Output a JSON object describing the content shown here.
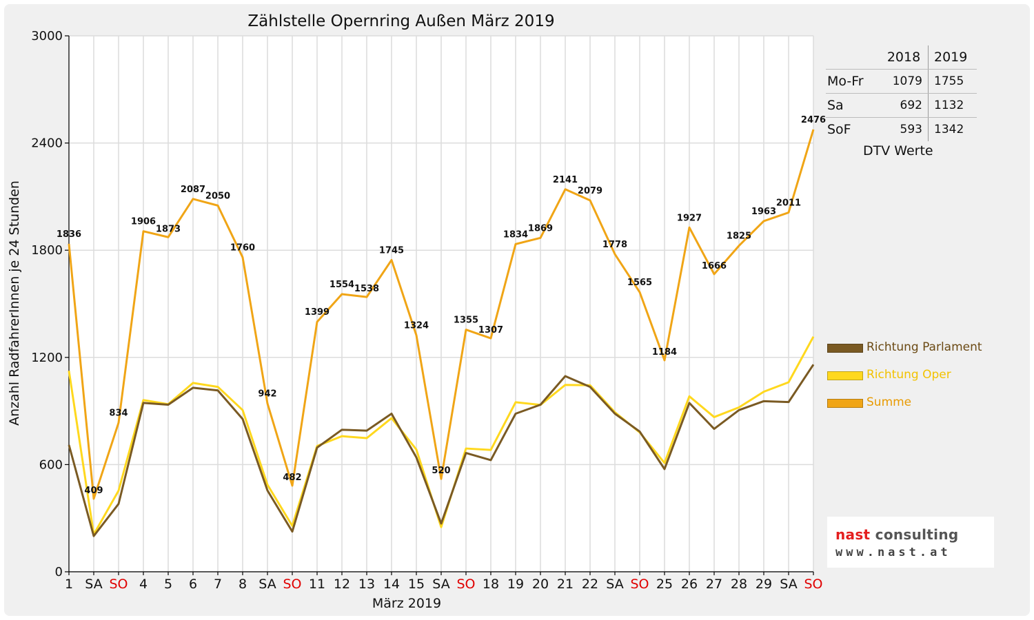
{
  "colors": {
    "parlament": "#7a5a23",
    "oper": "#ffd81e",
    "summe": "#f0a516",
    "sunday": "#e00000",
    "logo_red": "#e41e1e"
  },
  "chart_data": {
    "type": "line",
    "title": "Zählstelle Opernring Außen März 2019",
    "xlabel": "März 2019",
    "ylabel": "Anzahl RadfahrerInnen je 24 Stunden",
    "ylim": [
      0,
      3000
    ],
    "yticks": [
      0,
      600,
      1200,
      1800,
      2400,
      3000
    ],
    "grid": true,
    "legend_position": "right",
    "categories": [
      "1",
      "SA",
      "SO",
      "4",
      "5",
      "6",
      "7",
      "8",
      "SA",
      "SO",
      "11",
      "12",
      "13",
      "14",
      "15",
      "SA",
      "SO",
      "18",
      "19",
      "20",
      "21",
      "22",
      "SA",
      "SO",
      "25",
      "26",
      "27",
      "28",
      "29",
      "SA",
      "SO"
    ],
    "sunday_labels": [
      "SO"
    ],
    "series": [
      {
        "name": "Richtung Parlament",
        "color_key": "parlament",
        "values": [
          710,
          200,
          380,
          945,
          935,
          1030,
          1015,
          855,
          455,
          225,
          695,
          795,
          790,
          885,
          640,
          270,
          665,
          625,
          885,
          935,
          1095,
          1035,
          885,
          785,
          575,
          945,
          800,
          905,
          955,
          950,
          1160
        ]
      },
      {
        "name": "Richtung Oper",
        "color_key": "oper",
        "values": [
          1125,
          209,
          454,
          961,
          938,
          1057,
          1035,
          905,
          487,
          257,
          704,
          759,
          748,
          860,
          684,
          250,
          690,
          682,
          949,
          934,
          1046,
          1044,
          893,
          780,
          609,
          982,
          866,
          920,
          1008,
          1061,
          1316
        ]
      },
      {
        "name": "Summe",
        "color_key": "summe",
        "labels": true,
        "values": [
          1836,
          409,
          834,
          1906,
          1873,
          2087,
          2050,
          1760,
          942,
          482,
          1399,
          1554,
          1538,
          1745,
          1324,
          520,
          1355,
          1307,
          1834,
          1869,
          2141,
          2079,
          1778,
          1565,
          1184,
          1927,
          1666,
          1825,
          1963,
          2011,
          2476
        ]
      }
    ]
  },
  "dtv_table": {
    "headers": [
      "2018",
      "2019"
    ],
    "rows": [
      {
        "label": "Mo-Fr",
        "v2018": "1079",
        "v2019": "1755"
      },
      {
        "label": "Sa",
        "v2018": "692",
        "v2019": "1132"
      },
      {
        "label": "SoF",
        "v2018": "593",
        "v2019": "1342"
      }
    ],
    "caption": "DTV Werte"
  },
  "logo": {
    "name_red": "nast",
    "name_rest": " consulting",
    "url": "www.nast.at"
  }
}
